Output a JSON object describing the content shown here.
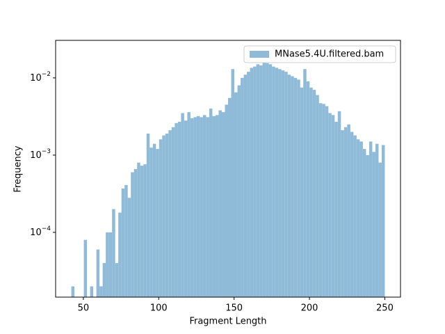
{
  "chart_data": {
    "type": "histogram",
    "xlabel": "Fragment Length",
    "ylabel": "Frequency",
    "bins": [
      42,
      44.08,
      46.16,
      48.24,
      50.32,
      52.4,
      54.48,
      56.56,
      58.64,
      60.72,
      62.8,
      64.88,
      66.96,
      69.04,
      71.12,
      73.2,
      75.28,
      77.36,
      79.44,
      81.52,
      83.6,
      85.68,
      87.76,
      89.84,
      91.92,
      94,
      96.08,
      98.16,
      100.24,
      102.32,
      104.4,
      106.48,
      108.56,
      110.64,
      112.72,
      114.8,
      116.88,
      118.96,
      121.04,
      123.12,
      125.2,
      127.28,
      129.36,
      131.44,
      133.52,
      135.6,
      137.68,
      139.76,
      141.84,
      143.92,
      146,
      148.08,
      150.16,
      152.24,
      154.32,
      156.4,
      158.48,
      160.56,
      162.64,
      164.72,
      166.8,
      168.88,
      170.96,
      173.04,
      175.12,
      177.2,
      179.28,
      181.36,
      183.44,
      185.52,
      187.6,
      189.68,
      191.76,
      193.84,
      195.92,
      198,
      200.08,
      202.16,
      204.24,
      206.32,
      208.4,
      210.48,
      212.56,
      214.64,
      216.72,
      218.8,
      220.88,
      222.96,
      225.04,
      227.12,
      229.2,
      231.28,
      233.36,
      235.44,
      237.52,
      239.6,
      241.68,
      243.76,
      245.84,
      247.92,
      250
    ],
    "series": [
      {
        "name": "MNase5.4U.filtered.bam",
        "color": "#8fbbd9",
        "values": [
          2e-05,
          0,
          0,
          0,
          8e-05,
          0,
          2e-05,
          0,
          6e-05,
          2e-05,
          4e-05,
          0.0001,
          0.0001,
          0.0002,
          4e-05,
          0.00018,
          0.00037,
          0.00041,
          0.00028,
          0.0006,
          0.00066,
          0.0008,
          0.00073,
          0.00076,
          0.0019,
          0.00125,
          0.0014,
          0.0012,
          0.0016,
          0.0018,
          0.0019,
          0.0021,
          0.0023,
          0.0026,
          0.0027,
          0.0035,
          0.0028,
          0.0036,
          0.003,
          0.0031,
          0.0032,
          0.0031,
          0.0033,
          0.0031,
          0.004,
          0.0032,
          0.0033,
          0.0038,
          0.0036,
          0.0045,
          0.0055,
          0.013,
          0.0065,
          0.008,
          0.01,
          0.011,
          0.012,
          0.0135,
          0.014,
          0.015,
          0.0145,
          0.016,
          0.0155,
          0.015,
          0.014,
          0.0135,
          0.013,
          0.0125,
          0.012,
          0.011,
          0.0105,
          0.01,
          0.0095,
          0.0075,
          0.013,
          0.009,
          0.0075,
          0.007,
          0.006,
          0.0047,
          0.0046,
          0.0043,
          0.0035,
          0.0033,
          0.0027,
          0.0037,
          0.0021,
          0.0023,
          0.0025,
          0.002,
          0.0018,
          0.0016,
          0.0015,
          0.0012,
          0.001,
          0.0015,
          0.0011,
          0.0014,
          0.0008,
          0.00135
        ]
      }
    ],
    "xlim": [
      31.6,
      260.4
    ],
    "ylim": [
      1.45e-05,
      0.0306
    ],
    "yscale": "log",
    "xticks": [
      50,
      100,
      150,
      200,
      250
    ],
    "yticks": [
      {
        "value": 0.0001,
        "label": "10−4"
      },
      {
        "value": 0.001,
        "label": "10−3"
      },
      {
        "value": 0.01,
        "label": "10−2"
      }
    ],
    "legend": "upper right"
  }
}
